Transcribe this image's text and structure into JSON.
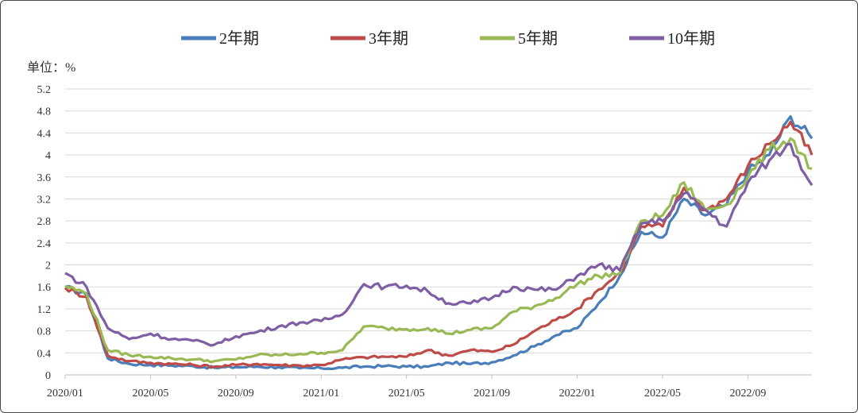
{
  "chart_data": {
    "type": "line",
    "unit_label": "单位：%",
    "x_ticks": [
      "2020/01",
      "2020/05",
      "2020/09",
      "2021/01",
      "2021/05",
      "2021/09",
      "2022/01",
      "2022/05",
      "2022/09"
    ],
    "y_ticks": [
      "0",
      "0.4",
      "0.8",
      "1.2",
      "1.6",
      "2",
      "2.4",
      "2.8",
      "3.2",
      "3.6",
      "4",
      "4.4",
      "4.8",
      "5.2"
    ],
    "ylim": [
      0,
      5.2
    ],
    "xlim": [
      "2020/01",
      "2022/12"
    ],
    "grid": true,
    "legend_position": "top",
    "x": [
      "2020/01",
      "2020/02",
      "2020/03",
      "2020/04",
      "2020/05",
      "2020/06",
      "2020/07",
      "2020/08",
      "2020/09",
      "2020/10",
      "2020/11",
      "2020/12",
      "2021/01",
      "2021/02",
      "2021/03",
      "2021/04",
      "2021/05",
      "2021/06",
      "2021/07",
      "2021/08",
      "2021/09",
      "2021/10",
      "2021/11",
      "2021/12",
      "2022/01",
      "2022/02",
      "2022/03",
      "2022/04",
      "2022/05",
      "2022/06",
      "2022/07",
      "2022/08",
      "2022/09",
      "2022/10",
      "2022/11",
      "2022/12"
    ],
    "series": [
      {
        "name": "2年期",
        "color": "#4a7ebb",
        "values": [
          1.6,
          1.45,
          0.3,
          0.2,
          0.18,
          0.17,
          0.16,
          0.13,
          0.14,
          0.15,
          0.14,
          0.12,
          0.12,
          0.13,
          0.15,
          0.16,
          0.15,
          0.15,
          0.22,
          0.2,
          0.23,
          0.35,
          0.52,
          0.72,
          0.85,
          1.3,
          1.8,
          2.6,
          2.5,
          3.2,
          2.9,
          3.1,
          3.7,
          4.0,
          4.7,
          4.3
        ]
      },
      {
        "name": "3年期",
        "color": "#be4b48",
        "values": [
          1.58,
          1.42,
          0.35,
          0.25,
          0.22,
          0.2,
          0.18,
          0.15,
          0.18,
          0.2,
          0.18,
          0.17,
          0.18,
          0.28,
          0.32,
          0.33,
          0.33,
          0.45,
          0.35,
          0.45,
          0.42,
          0.55,
          0.8,
          1.0,
          1.2,
          1.55,
          1.85,
          2.7,
          2.7,
          3.4,
          3.0,
          3.2,
          3.8,
          4.2,
          4.6,
          4.0
        ]
      },
      {
        "name": "5年期",
        "color": "#98b954",
        "values": [
          1.62,
          1.48,
          0.45,
          0.36,
          0.33,
          0.3,
          0.28,
          0.25,
          0.28,
          0.36,
          0.36,
          0.38,
          0.4,
          0.45,
          0.88,
          0.85,
          0.83,
          0.85,
          0.75,
          0.82,
          0.85,
          1.15,
          1.25,
          1.4,
          1.65,
          1.8,
          1.85,
          2.8,
          2.9,
          3.5,
          3.0,
          3.1,
          3.6,
          4.1,
          4.3,
          3.75
        ]
      },
      {
        "name": "10年期",
        "color": "#7f5fa4",
        "values": [
          1.85,
          1.6,
          0.85,
          0.65,
          0.75,
          0.65,
          0.62,
          0.55,
          0.7,
          0.78,
          0.88,
          0.95,
          0.98,
          1.1,
          1.65,
          1.6,
          1.62,
          1.52,
          1.3,
          1.3,
          1.4,
          1.6,
          1.55,
          1.55,
          1.8,
          2.0,
          1.9,
          2.75,
          2.8,
          3.3,
          3.0,
          2.7,
          3.5,
          3.9,
          4.2,
          3.45
        ]
      }
    ]
  }
}
